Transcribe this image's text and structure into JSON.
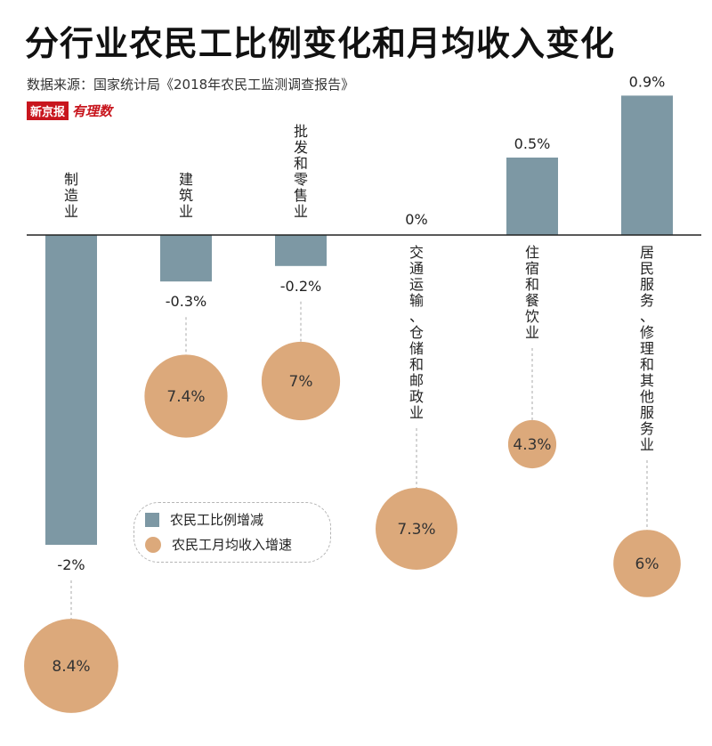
{
  "header": {
    "title": "分行业农民工比例变化和月均收入变化",
    "source": "数据来源：国家统计局《2018年农民工监测调查报告》",
    "logo_main": "新京报",
    "logo_sub": "有理数"
  },
  "legend": {
    "bar_label": "农民工比例增减",
    "circle_label": "农民工月均收入增速"
  },
  "colors": {
    "bar": "#7d98a4",
    "circle": "#dca97b",
    "axis": "#222222",
    "dashed": "#aaaaaa"
  },
  "chart_data": {
    "type": "bar",
    "categories": [
      "制造业",
      "建筑业",
      "批发和零售业",
      "交通运输、仓储和邮政业",
      "住宿和餐饮业",
      "居民服务、修理和其他服务业"
    ],
    "series": [
      {
        "name": "农民工比例增减",
        "values": [
          -2,
          -0.3,
          -0.2,
          0,
          0.5,
          0.9
        ],
        "labels": [
          "-2%",
          "-0.3%",
          "-0.2%",
          "0%",
          "0.5%",
          "0.9%"
        ]
      },
      {
        "name": "农民工月均收入增速",
        "values": [
          8.4,
          7.4,
          7,
          7.3,
          4.3,
          6
        ],
        "labels": [
          "8.4%",
          "7.4%",
          "7%",
          "7.3%",
          "4.3%",
          "6%"
        ]
      }
    ]
  }
}
